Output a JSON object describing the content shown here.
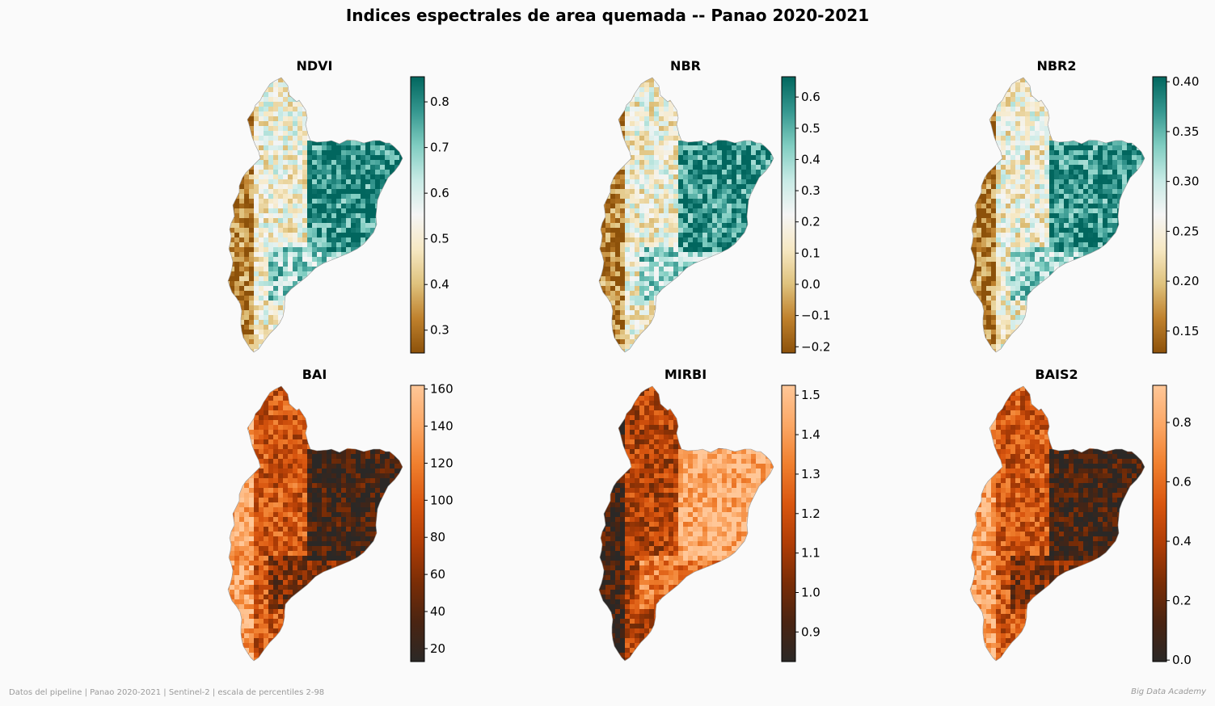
{
  "suptitle": "Indices espectrales de area quemada -- Panao 2020-2021",
  "footer": {
    "left": "Datos del pipeline | Panao 2020-2021 | Sentinel-2 | escala de percentiles 2-98",
    "right": "Big Data Academy"
  },
  "colormaps": {
    "BrBG": [
      "#8c510a",
      "#bf812d",
      "#dfc27d",
      "#f6e8c3",
      "#f5f5f5",
      "#c7eae5",
      "#80cdc1",
      "#35978f",
      "#01665e"
    ],
    "Oranges_dark": [
      "#2b2826",
      "#4a2412",
      "#7a2d06",
      "#b03d06",
      "#d9560f",
      "#f07f2e",
      "#fba765",
      "#ffc798"
    ]
  },
  "chart_data": [
    {
      "type": "heatmap",
      "title": "NDVI",
      "colormap": "BrBG",
      "colorbar": {
        "range": [
          0.25,
          0.855
        ],
        "ticks": [
          0.3,
          0.4,
          0.5,
          0.6,
          0.7,
          0.8
        ],
        "tick_labels": [
          "0.3",
          "0.4",
          "0.5",
          "0.6",
          "0.7",
          "0.8"
        ]
      },
      "high_in_east": true
    },
    {
      "type": "heatmap",
      "title": "NBR",
      "colormap": "BrBG",
      "colorbar": {
        "range": [
          -0.22,
          0.665
        ],
        "ticks": [
          -0.2,
          -0.1,
          0.0,
          0.1,
          0.2,
          0.3,
          0.4,
          0.5,
          0.6
        ],
        "tick_labels": [
          "−0.2",
          "−0.1",
          "0.0",
          "0.1",
          "0.2",
          "0.3",
          "0.4",
          "0.5",
          "0.6"
        ]
      },
      "high_in_east": true
    },
    {
      "type": "heatmap",
      "title": "NBR2",
      "colormap": "BrBG",
      "colorbar": {
        "range": [
          0.128,
          0.405
        ],
        "ticks": [
          0.15,
          0.2,
          0.25,
          0.3,
          0.35,
          0.4
        ],
        "tick_labels": [
          "0.15",
          "0.20",
          "0.25",
          "0.30",
          "0.35",
          "0.40"
        ]
      },
      "high_in_east": true
    },
    {
      "type": "heatmap",
      "title": "BAI",
      "colormap": "Oranges_dark",
      "colorbar": {
        "range": [
          13,
          162
        ],
        "ticks": [
          20,
          40,
          60,
          80,
          100,
          120,
          140,
          160
        ],
        "tick_labels": [
          "20",
          "40",
          "60",
          "80",
          "100",
          "120",
          "140",
          "160"
        ]
      },
      "high_in_east": false
    },
    {
      "type": "heatmap",
      "title": "MIRBI",
      "colormap": "Oranges_dark",
      "colorbar": {
        "range": [
          0.825,
          1.525
        ],
        "ticks": [
          0.9,
          1.0,
          1.1,
          1.2,
          1.3,
          1.4,
          1.5
        ],
        "tick_labels": [
          "0.9",
          "1.0",
          "1.1",
          "1.2",
          "1.3",
          "1.4",
          "1.5"
        ]
      },
      "high_in_east": true
    },
    {
      "type": "heatmap",
      "title": "BAIS2",
      "colormap": "Oranges_dark",
      "colorbar": {
        "range": [
          -0.005,
          0.925
        ],
        "ticks": [
          0.0,
          0.2,
          0.4,
          0.6,
          0.8
        ],
        "tick_labels": [
          "0.0",
          "0.2",
          "0.4",
          "0.6",
          "0.8"
        ]
      },
      "high_in_east": false
    }
  ]
}
